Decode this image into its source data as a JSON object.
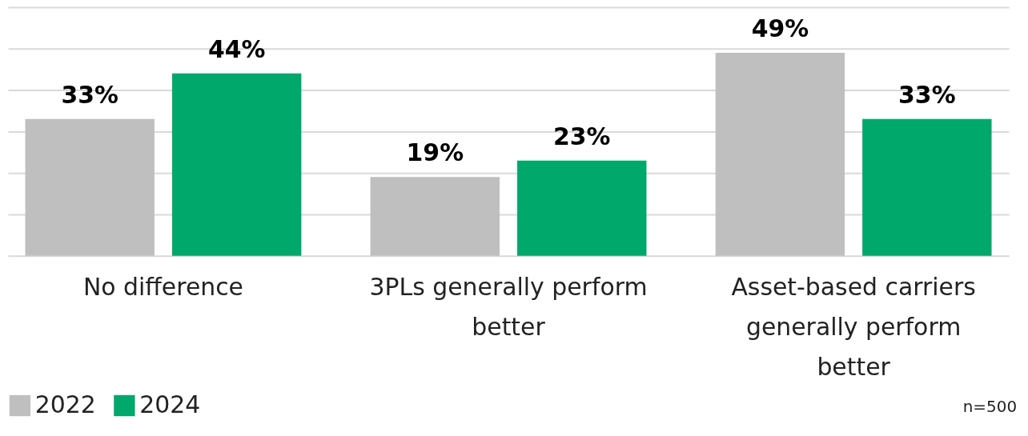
{
  "chart_data": {
    "type": "bar",
    "categories": [
      "No difference",
      "3PLs generally perform better",
      "Asset-based carriers generally perform better"
    ],
    "series": [
      {
        "name": "2022",
        "color": "#bfbfbf",
        "values": [
          33,
          19,
          49
        ],
        "value_labels": [
          "33%",
          "19%",
          "49%"
        ]
      },
      {
        "name": "2024",
        "color": "#00a86b",
        "values": [
          44,
          23,
          33
        ],
        "value_labels": [
          "44%",
          "23%",
          "33%"
        ]
      }
    ],
    "ylim": [
      0,
      60
    ],
    "yticks": [
      {
        "value": 0,
        "label": null
      },
      {
        "value": 10,
        "label": null
      },
      {
        "value": 20,
        "label": null
      },
      {
        "value": 30,
        "label": null
      },
      {
        "value": 40,
        "label": null
      },
      {
        "value": 50,
        "label": null
      },
      {
        "value": 60,
        "label": null
      }
    ],
    "grid": "y",
    "tick_labels": "x",
    "legend": "bottom",
    "annotations": [
      "n=500"
    ]
  }
}
